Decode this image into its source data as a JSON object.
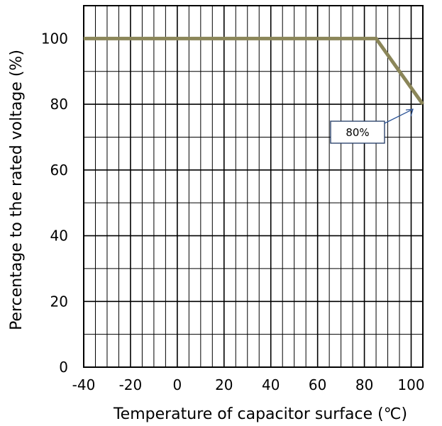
{
  "chart_data": {
    "type": "line",
    "title": "",
    "xlabel": "Temperature of capacitor surface (℃)",
    "ylabel": "Percentage to the rated voltage  (%)",
    "xlim": [
      -40,
      105
    ],
    "ylim": [
      0,
      110
    ],
    "grid": true,
    "x_ticks": [
      -40,
      -20,
      0,
      20,
      40,
      60,
      80,
      100
    ],
    "y_ticks": [
      0,
      20,
      40,
      60,
      80,
      100
    ],
    "x_tick_labels": [
      "-40",
      "-20",
      "0",
      "20",
      "40",
      "60",
      "80",
      "100"
    ],
    "y_tick_labels": [
      "0",
      "20",
      "40",
      "60",
      "80",
      "100"
    ],
    "series": [
      {
        "x": [
          -40,
          85,
          105
        ],
        "y": [
          100,
          100,
          80
        ]
      }
    ],
    "line_color": "#8B8659",
    "annotations": [
      {
        "text": "80%",
        "x": 105,
        "y": 80
      }
    ]
  }
}
